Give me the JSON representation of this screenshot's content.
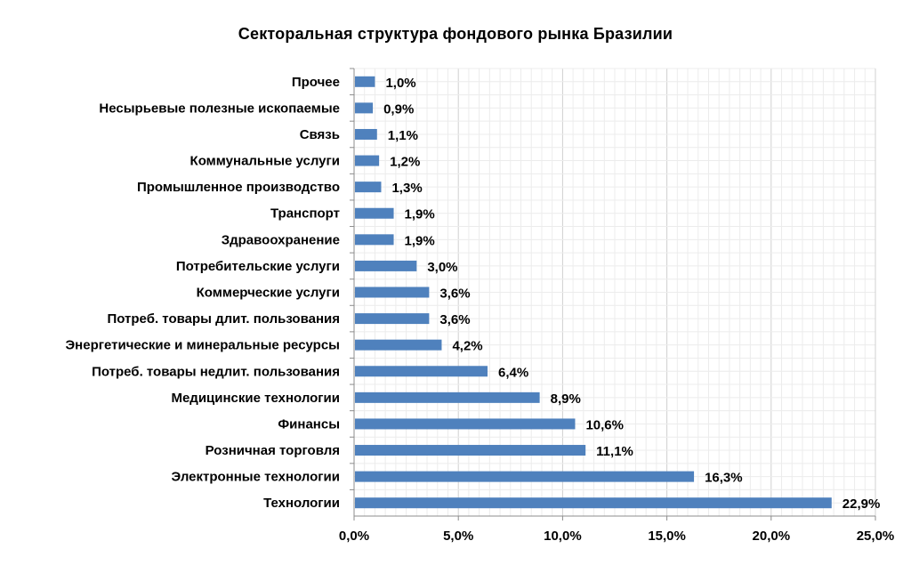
{
  "chart_data": {
    "type": "bar",
    "orientation": "horizontal",
    "title": "Секторальная структура фондового рынка  Бразилии",
    "xlabel": "",
    "ylabel": "",
    "xlim": [
      0,
      25
    ],
    "x_ticks": [
      "0,0%",
      "5,0%",
      "10,0%",
      "15,0%",
      "20,0%",
      "25,0%"
    ],
    "grid": true,
    "legend": "none",
    "bar_color": "#4f81bd",
    "categories": [
      "Прочее",
      "Несырьевые полезные ископаемые",
      "Связь",
      "Коммунальные услуги",
      "Промышленное производство",
      "Транспорт",
      "Здравоохранение",
      "Потребительские услуги",
      "Коммерческие услуги",
      "Потреб. товары длит. пользования",
      "Энергетические и минеральные ресурсы",
      "Потреб. товары недлит. пользования",
      "Медицинские технологии",
      "Финансы",
      "Розничная торговля",
      "Электронные технологии",
      "Технологии"
    ],
    "values": [
      1.0,
      0.9,
      1.1,
      1.2,
      1.3,
      1.9,
      1.9,
      3.0,
      3.6,
      3.6,
      4.2,
      6.4,
      8.9,
      10.6,
      11.1,
      16.3,
      22.9
    ],
    "value_labels": [
      "1,0%",
      "0,9%",
      "1,1%",
      "1,2%",
      "1,3%",
      "1,9%",
      "1,9%",
      "3,0%",
      "3,6%",
      "3,6%",
      "4,2%",
      "6,4%",
      "8,9%",
      "10,6%",
      "11,1%",
      "16,3%",
      "22,9%"
    ]
  }
}
